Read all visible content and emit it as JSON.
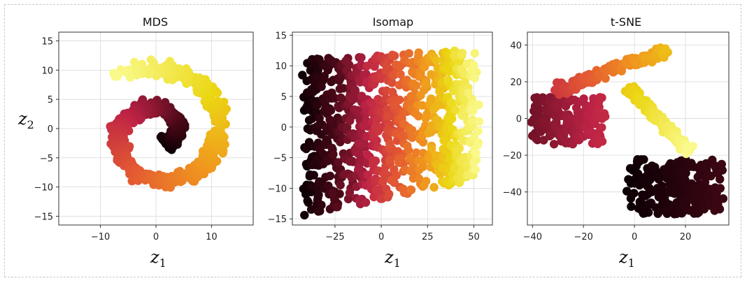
{
  "figure": {
    "background": "#ffffff",
    "colormap": "hot"
  },
  "chart_data": [
    {
      "type": "scatter",
      "title": "MDS",
      "xlabel": "z1",
      "ylabel": "z2",
      "xlim": [
        -17.5,
        17.5
      ],
      "ylim": [
        -16.5,
        16.5
      ],
      "xticks": [
        -10,
        0,
        10
      ],
      "yticks": [
        -15,
        -10,
        -5,
        0,
        5,
        10,
        15
      ],
      "grid": true,
      "shape": "spiral-ring",
      "approx_points": 900
    },
    {
      "type": "scatter",
      "title": "Isomap",
      "xlabel": "z1",
      "ylabel": "",
      "xlim": [
        -48,
        60
      ],
      "ylim": [
        -16,
        15.5
      ],
      "xticks": [
        -25,
        0,
        25,
        50
      ],
      "yticks": [
        -15,
        -10,
        -5,
        0,
        5,
        10,
        15
      ],
      "grid": true,
      "shape": "unrolled-sheet",
      "x_range_of_points": [
        -42,
        55
      ],
      "y_range_of_points": [
        -14.5,
        13.5
      ],
      "approx_points": 900
    },
    {
      "type": "scatter",
      "title": "t-SNE",
      "xlabel": "z1",
      "ylabel": "",
      "xlim": [
        -42,
        37
      ],
      "ylim": [
        -58,
        47
      ],
      "xticks": [
        -40,
        -20,
        0,
        20
      ],
      "yticks": [
        -40,
        -20,
        0,
        20,
        40
      ],
      "grid": true,
      "shape": "clusters",
      "clusters": [
        {
          "label": "top chain",
          "x_range": [
            -30,
            14
          ],
          "y_range": [
            16,
            45
          ],
          "color_range": [
            0.45,
            0.8
          ]
        },
        {
          "label": "left blob",
          "x_range": [
            -40,
            -12
          ],
          "y_range": [
            -14,
            12
          ],
          "color_range": [
            0.25,
            0.4
          ]
        },
        {
          "label": "middle yellow",
          "x_range": [
            -2,
            22
          ],
          "y_range": [
            -18,
            16
          ],
          "color_range": [
            0.82,
            1.0
          ]
        },
        {
          "label": "bottom dark",
          "x_range": [
            -2,
            35
          ],
          "y_range": [
            -52,
            -22
          ],
          "color_range": [
            0.0,
            0.15
          ]
        }
      ],
      "approx_points": 900
    }
  ]
}
